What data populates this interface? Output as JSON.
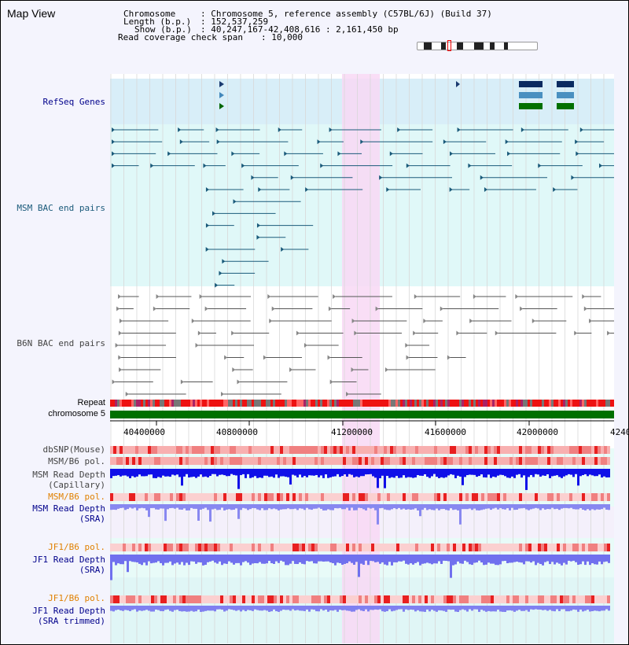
{
  "view_title": "Map View",
  "header": {
    "chromosome_key": "Chromosome",
    "chromosome_val": ": Chromosome 5, reference assembly (C57BL/6J) (Build 37)",
    "length_key": "Length (b.p.)",
    "length_val": ": 152,537,259",
    "show_key": "Show (b.p.)",
    "show_val": ": 40,247,167-42,408,616 : 2,161,450 bp",
    "coverage_key": "Read coverage check span",
    "coverage_val": ": 10,000"
  },
  "tracks": {
    "refseq": "RefSeq Genes",
    "msm_bac": "MSM BAC end pairs",
    "b6n_bac": "B6N BAC end pairs",
    "repeat": "Repeat",
    "chromosome": "chromosome 5",
    "dbsnp": "dbSNP(Mouse)",
    "msm_b6_pol_1": "MSM/B6 pol.",
    "msm_read_depth_cap": "MSM Read Depth",
    "capillary": "(Capillary)",
    "msm_b6_pol_2": "MSM/B6 pol.",
    "msm_read_depth_sra": "MSM Read Depth",
    "sra_1": "(SRA)",
    "jf1_b6_pol_1": "JF1/B6 pol.",
    "jf1_read_depth_sra": "JF1 Read Depth",
    "sra_2": "(SRA)",
    "jf1_b6_pol_2": "JF1/B6 pol.",
    "jf1_read_depth_trim": "JF1 Read Depth",
    "sra_trimmed": "(SRA trimmed)"
  },
  "axis": {
    "ticks": [
      "40400000",
      "40800000",
      "41200000",
      "41600000",
      "42000000",
      "4240"
    ]
  },
  "colors": {
    "navy_label": "#00008b",
    "teal_label": "#1a5a7a",
    "orange_label": "#e08000",
    "highlight": "#f8d8f4",
    "refseq_bg": "#d8eef8",
    "msm_bg": "#e0f8f8",
    "chrom_green": "#007000",
    "depth_blue": "#1010e8",
    "depth_light": "#8888f0"
  }
}
